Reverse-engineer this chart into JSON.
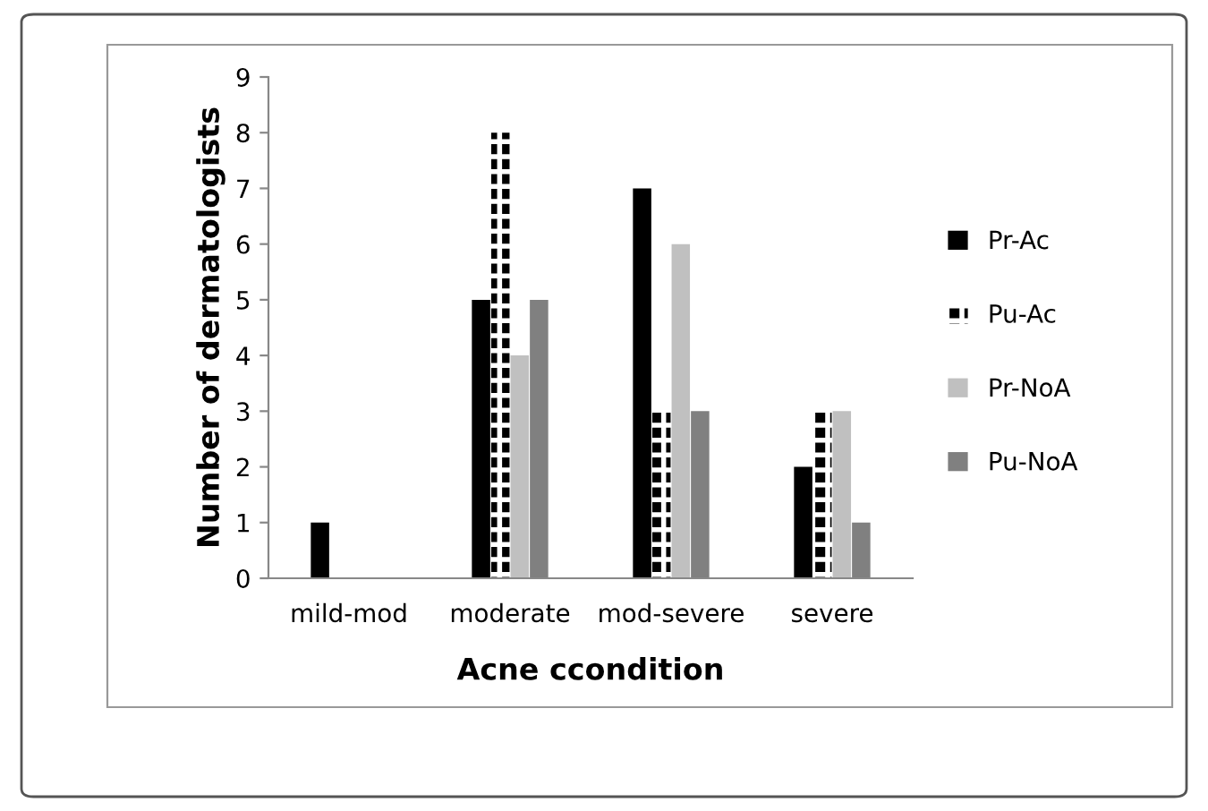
{
  "chart_data": {
    "type": "bar",
    "xlabel": "Acne ccondition",
    "ylabel": "Number of dermatologists",
    "categories": [
      "mild-mod",
      "moderate",
      "mod-severe",
      "severe"
    ],
    "series": [
      {
        "name": "Pr-Ac",
        "color": "#000000",
        "values": [
          1,
          5,
          7,
          2
        ]
      },
      {
        "name": "Pu-Ac",
        "color": "#000000",
        "values": [
          0,
          8,
          3,
          3
        ]
      },
      {
        "name": "Pr-NoA",
        "color": "#c0c0c0",
        "values": [
          0,
          4,
          6,
          3
        ]
      },
      {
        "name": "Pu-NoA",
        "color": "#808080",
        "values": [
          0,
          5,
          3,
          1
        ]
      }
    ],
    "ylim": [
      0,
      9
    ],
    "yticks": [
      0,
      1,
      2,
      3,
      4,
      5,
      6,
      7,
      8,
      9
    ],
    "grid": false,
    "legend": "right"
  }
}
